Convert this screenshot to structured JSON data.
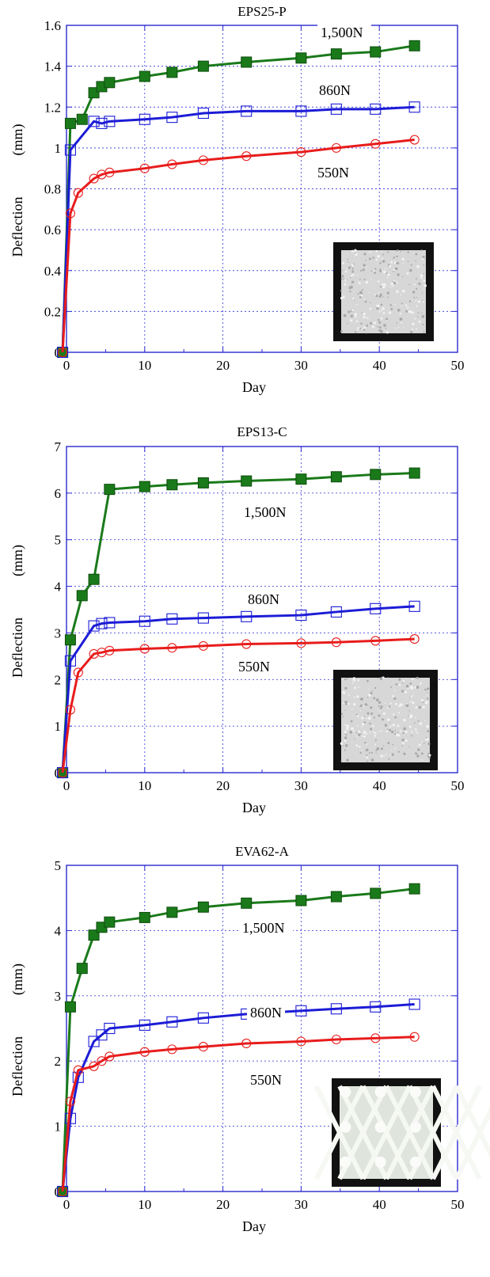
{
  "chart_data": [
    {
      "type": "line",
      "title": "EPS25-P",
      "xlabel": "Day",
      "ylabel": "Deflection",
      "yunit": "(mm)",
      "xlim": [
        0,
        50
      ],
      "ylim": [
        0,
        1.6
      ],
      "xticks": [
        "0",
        "10",
        "20",
        "30",
        "40",
        "50"
      ],
      "yticks": [
        "0",
        "0.2",
        "0.4",
        "0.6",
        "0.8",
        "1",
        "1.2",
        "1.4",
        "1.6"
      ],
      "grid": true,
      "sample_photo": "white-foam-square",
      "series": [
        {
          "name": "1,500N",
          "color": "#1a7a1a",
          "marker": "square-filled",
          "x": [
            -0.5,
            0.5,
            2,
            3.5,
            4.5,
            5.5,
            10,
            13.5,
            17.5,
            23,
            30,
            34.5,
            39.5,
            44.5
          ],
          "y": [
            0,
            1.12,
            1.14,
            1.27,
            1.3,
            1.32,
            1.35,
            1.37,
            1.4,
            1.42,
            1.44,
            1.46,
            1.47,
            1.5
          ]
        },
        {
          "name": "860N",
          "color": "#1c1cd6",
          "marker": "square-open",
          "x": [
            -0.5,
            0.5,
            3.5,
            4.5,
            5.5,
            10,
            13.5,
            17.5,
            23,
            30,
            34.5,
            39.5,
            44.5
          ],
          "y": [
            0,
            0.99,
            1.13,
            1.12,
            1.13,
            1.14,
            1.15,
            1.17,
            1.18,
            1.18,
            1.19,
            1.19,
            1.2
          ]
        },
        {
          "name": "550N",
          "color": "#e81c1c",
          "marker": "circle-open",
          "x": [
            -0.5,
            0.5,
            1.5,
            3.5,
            4.5,
            5.5,
            10,
            13.5,
            17.5,
            23,
            30,
            34.5,
            39.5,
            44.5
          ],
          "y": [
            0,
            0.68,
            0.78,
            0.85,
            0.87,
            0.88,
            0.9,
            0.92,
            0.94,
            0.96,
            0.98,
            1.0,
            1.02,
            1.04
          ]
        }
      ]
    },
    {
      "type": "line",
      "title": "EPS13-C",
      "xlabel": "Day",
      "ylabel": "Deflection",
      "yunit": "(mm)",
      "xlim": [
        0,
        50
      ],
      "ylim": [
        0,
        7
      ],
      "xticks": [
        "0",
        "10",
        "20",
        "30",
        "40",
        "50"
      ],
      "yticks": [
        "0",
        "1",
        "2",
        "3",
        "4",
        "5",
        "6",
        "7"
      ],
      "grid": true,
      "sample_photo": "white-foam-square",
      "series": [
        {
          "name": "1,500N",
          "color": "#1a7a1a",
          "marker": "square-filled",
          "x": [
            -0.5,
            0.5,
            2,
            3.5,
            5.5,
            10,
            13.5,
            17.5,
            23,
            30,
            34.5,
            39.5,
            44.5
          ],
          "y": [
            0,
            2.85,
            3.8,
            4.15,
            6.08,
            6.14,
            6.18,
            6.22,
            6.26,
            6.3,
            6.35,
            6.4,
            6.43
          ]
        },
        {
          "name": "860N",
          "color": "#1c1cd6",
          "marker": "square-open",
          "x": [
            -0.5,
            0.5,
            3.5,
            4.5,
            5.5,
            10,
            13.5,
            17.5,
            23,
            30,
            34.5,
            39.5,
            44.5
          ],
          "y": [
            0,
            2.4,
            3.15,
            3.2,
            3.22,
            3.25,
            3.3,
            3.32,
            3.35,
            3.38,
            3.45,
            3.52,
            3.57
          ]
        },
        {
          "name": "550N",
          "color": "#e81c1c",
          "marker": "circle-open",
          "x": [
            -0.5,
            0.5,
            1.5,
            3.5,
            4.5,
            5.5,
            10,
            13.5,
            17.5,
            23,
            30,
            34.5,
            39.5,
            44.5
          ],
          "y": [
            0,
            1.35,
            2.15,
            2.55,
            2.58,
            2.62,
            2.66,
            2.68,
            2.72,
            2.76,
            2.78,
            2.8,
            2.83,
            2.87
          ]
        }
      ]
    },
    {
      "type": "line",
      "title": "EVA62-A",
      "xlabel": "Day",
      "ylabel": "Deflection",
      "yunit": "(mm)",
      "xlim": [
        0,
        50
      ],
      "ylim": [
        0,
        5
      ],
      "xticks": [
        "0",
        "10",
        "20",
        "30",
        "40",
        "50"
      ],
      "yticks": [
        "0",
        "1",
        "2",
        "3",
        "4",
        "5"
      ],
      "grid": true,
      "sample_photo": "white-lattice-square",
      "series": [
        {
          "name": "1,500N",
          "color": "#1a7a1a",
          "marker": "square-filled",
          "x": [
            -0.5,
            0.5,
            2,
            3.5,
            4.5,
            5.5,
            10,
            13.5,
            17.5,
            23,
            30,
            34.5,
            39.5,
            44.5
          ],
          "y": [
            0,
            2.83,
            3.42,
            3.93,
            4.05,
            4.13,
            4.2,
            4.28,
            4.36,
            4.42,
            4.46,
            4.52,
            4.57,
            4.64
          ]
        },
        {
          "name": "860N",
          "color": "#1c1cd6",
          "marker": "square-open",
          "x": [
            -0.5,
            0.5,
            1.5,
            3.5,
            4.5,
            5.5,
            10,
            13.5,
            17.5,
            23,
            30,
            34.5,
            39.5,
            44.5
          ],
          "y": [
            0,
            1.12,
            1.75,
            2.3,
            2.4,
            2.5,
            2.55,
            2.6,
            2.66,
            2.72,
            2.77,
            2.8,
            2.83,
            2.87
          ]
        },
        {
          "name": "550N",
          "color": "#e81c1c",
          "marker": "circle-open",
          "x": [
            -0.5,
            0.5,
            1.5,
            3.5,
            4.5,
            5.5,
            10,
            13.5,
            17.5,
            23,
            30,
            34.5,
            39.5,
            44.5
          ],
          "y": [
            0,
            1.38,
            1.86,
            1.92,
            2.0,
            2.07,
            2.14,
            2.18,
            2.22,
            2.27,
            2.3,
            2.33,
            2.35,
            2.37
          ]
        }
      ]
    }
  ]
}
